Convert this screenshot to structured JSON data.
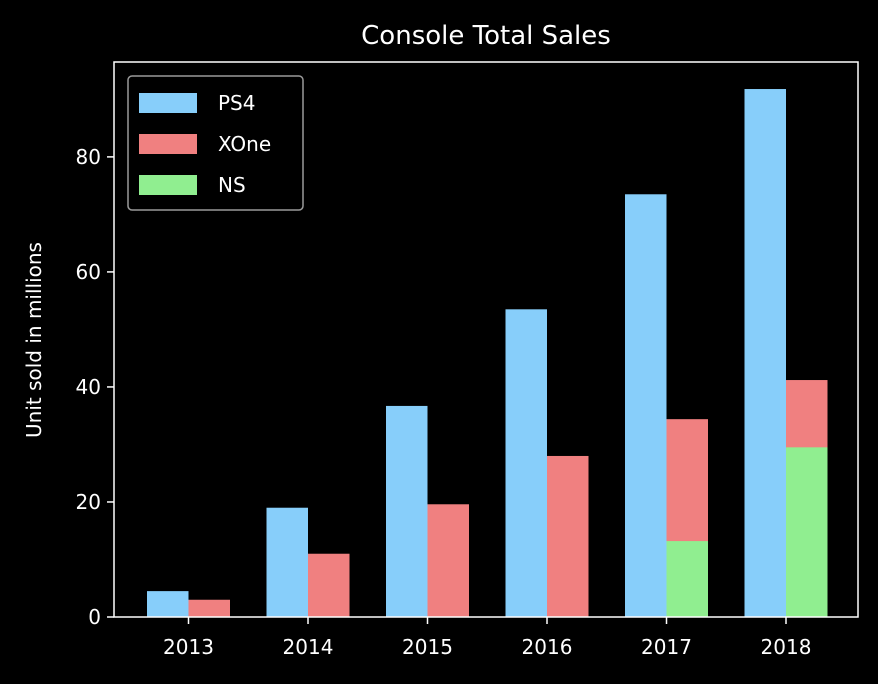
{
  "chart_data": {
    "type": "bar",
    "title": "Console Total Sales",
    "xlabel": "",
    "ylabel": "Unit sold in millions",
    "categories": [
      "2013",
      "2014",
      "2015",
      "2016",
      "2017",
      "2018"
    ],
    "ylim": [
      0,
      96.5
    ],
    "yticks": [
      0,
      20,
      40,
      60,
      80
    ],
    "series": [
      {
        "name": "PS4",
        "color": "#87CEFA",
        "values": [
          4.5,
          19,
          36.7,
          53.5,
          73.5,
          91.8
        ]
      },
      {
        "name": "XOne",
        "color": "#F08080",
        "values": [
          3,
          11,
          19.6,
          28,
          34.4,
          41.2
        ]
      },
      {
        "name": "NS",
        "color": "#90EE90",
        "values": [
          0,
          0,
          0,
          0,
          13.2,
          29.5
        ],
        "stacked_in": "XOne"
      }
    ],
    "grid": false,
    "legend_position": "top-left",
    "background": "#000000",
    "foreground": "#ffffff"
  }
}
